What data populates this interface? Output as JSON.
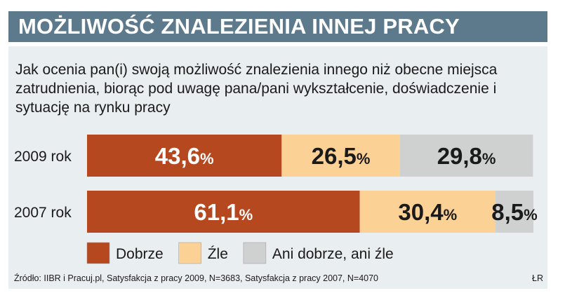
{
  "header": {
    "title": "MOŻLIWOŚĆ ZNALEZIENIA INNEJ PRACY"
  },
  "question": "Jak ocenia pan(i) swoją możliwość znalezienia innego niż obecne miejsca zatrudnienia, biorąc pod uwagę pana/pani wykształcenie, doświadczenie i sytuację na rynku pracy",
  "footer": {
    "source": "Źródło: IIBR i Pracuj.pl, Satysfakcja z pracy 2009, N=3683, Satysfakcja z pracy 2007, N=4070",
    "credit": "ŁR"
  },
  "colors": {
    "title_bg": "#5d7a8c",
    "panel_bg": "#e9eef1",
    "dobrze": "#b64820",
    "zle": "#fbd195",
    "ani": "#cfd0d0"
  },
  "chart_data": {
    "type": "bar",
    "stacked": true,
    "orientation": "horizontal",
    "unit": "%",
    "categories": [
      "2009 rok",
      "2007 rok"
    ],
    "series": [
      {
        "name": "Dobrze",
        "values": [
          43.6,
          61.1
        ],
        "labels": [
          "43,6",
          "61,1"
        ],
        "color": "#b64820",
        "label_color": "#ffffff"
      },
      {
        "name": "Źle",
        "values": [
          26.5,
          30.4
        ],
        "labels": [
          "26,5",
          "30,4"
        ],
        "color": "#fbd195",
        "label_color": "#1a1a1a"
      },
      {
        "name": "Ani dobrze, ani źle",
        "values": [
          29.8,
          8.5
        ],
        "labels": [
          "29,8",
          "8,5"
        ],
        "color": "#cfd0d0",
        "label_color": "#1a1a1a"
      }
    ],
    "xlim": [
      0,
      100
    ]
  }
}
